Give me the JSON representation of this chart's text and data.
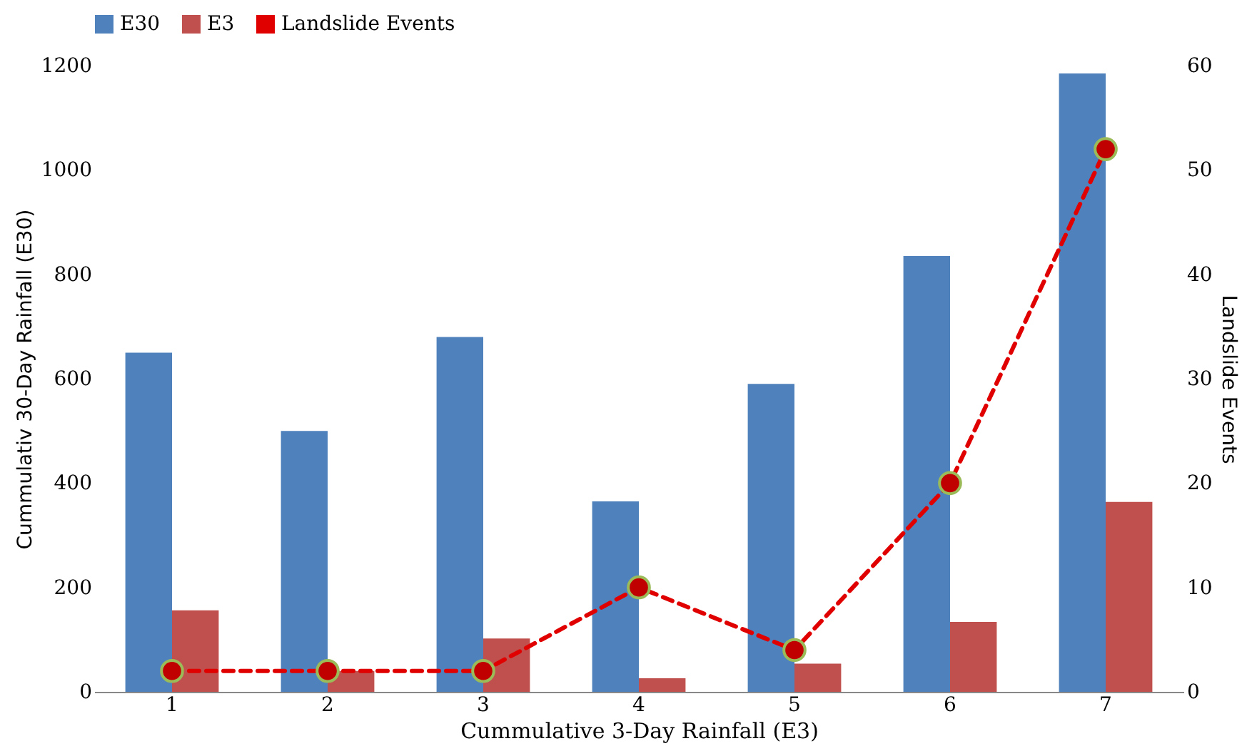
{
  "chart_data": {
    "type": "bar",
    "xlabel": "Cummulative 3-Day Rainfall (E3)",
    "ylabel": "Cummulativ 30-Day Rainfall (E30)",
    "y2label": "Landslide Events",
    "categories": [
      "1",
      "2",
      "3",
      "4",
      "5",
      "6",
      "7"
    ],
    "series": [
      {
        "name": "E30",
        "color": "#4f81bd",
        "values": [
          650,
          500,
          680,
          365,
          590,
          835,
          1185
        ]
      },
      {
        "name": "E3",
        "color": "#c0504d",
        "values": [
          156,
          40,
          102,
          26,
          54,
          134,
          364
        ]
      },
      {
        "name": "Landslide Events",
        "type": "line",
        "axis": "y2",
        "color": "#e00000",
        "marker": "circle",
        "line_style": "dashed",
        "values": [
          2,
          2,
          2,
          10,
          4,
          20,
          52
        ]
      }
    ],
    "ylim": [
      0,
      1200
    ],
    "yticks": [
      0,
      200,
      400,
      600,
      800,
      1000,
      1200
    ],
    "y2lim": [
      0,
      60
    ],
    "y2ticks": [
      0,
      10,
      20,
      30,
      40,
      50,
      60
    ],
    "grid": false,
    "legend": "top"
  }
}
